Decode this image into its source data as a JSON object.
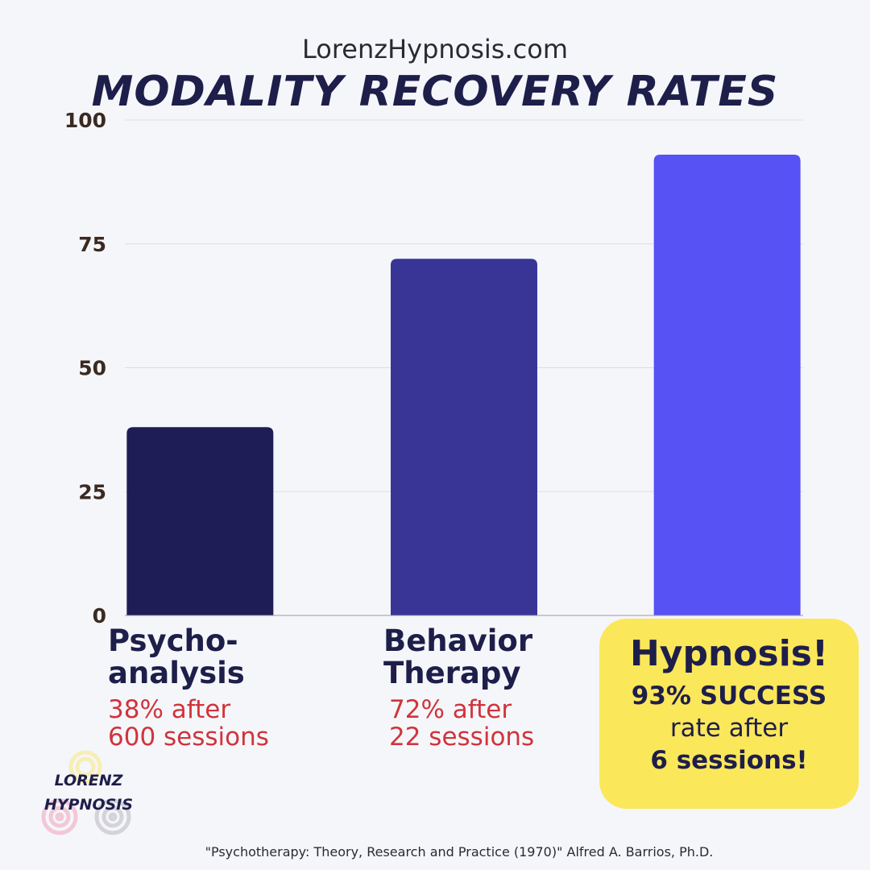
{
  "site": "LorenzHypnosis.com",
  "chart_data": {
    "type": "bar",
    "title": "MODALITY RECOVERY RATES",
    "categories": [
      "Psycho-analysis",
      "Behavior Therapy",
      "Hypnosis!"
    ],
    "values": [
      38,
      72,
      93
    ],
    "ylim": [
      0,
      100
    ],
    "yticks": [
      0,
      25,
      50,
      75,
      100
    ],
    "grid": true,
    "bar_colors": [
      "#1f1d55",
      "#383597",
      "#5752f4"
    ]
  },
  "labels": {
    "psychoanalysis": {
      "line1": "Psycho-",
      "line2": "analysis",
      "note1": "38% after",
      "note2": "600 sessions"
    },
    "behavior": {
      "line1": "Behavior",
      "line2": "Therapy",
      "note1": "72% after",
      "note2": "22 sessions"
    }
  },
  "callout": {
    "heading": "Hypnosis!",
    "line1": "93% SUCCESS",
    "line2": "rate after",
    "line3": "6 sessions!",
    "background": "#fbe75a"
  },
  "logo": {
    "line1": "LORENZ",
    "line2": "HYPNOSIS"
  },
  "citation": "\"Psychotherapy: Theory, Research and Practice (1970)\" Alfred A. Barrios, Ph.D.",
  "colors": {
    "title": "#1e1e4a",
    "note": "#d0343c"
  }
}
